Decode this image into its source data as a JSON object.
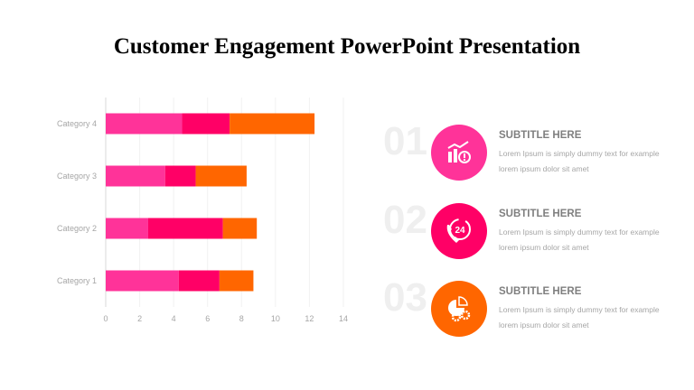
{
  "title": "Customer Engagement PowerPoint Presentation",
  "chart_data": {
    "type": "bar",
    "orientation": "horizontal",
    "stacked": true,
    "categories": [
      "Category 1",
      "Category 2",
      "Category 3",
      "Category 4"
    ],
    "series": [
      {
        "values": [
          4.3,
          2.5,
          3.5,
          4.5
        ],
        "color": "#ff3399"
      },
      {
        "values": [
          2.4,
          4.4,
          1.8,
          2.8
        ],
        "color": "#ff0066"
      },
      {
        "values": [
          2.0,
          2.0,
          3.0,
          5.0
        ],
        "color": "#ff6600"
      }
    ],
    "xlim": [
      0,
      14
    ],
    "xticks": [
      "0",
      "2",
      "4",
      "6",
      "8",
      "10",
      "12",
      "14"
    ],
    "grid": true
  },
  "items": [
    {
      "number": "01",
      "subtitle": "SUBTITLE HERE",
      "text": "Lorem Ipsum is simply dummy text for example lorem ipsum dolor sit amet",
      "color": "#ff3399",
      "icon": "chart-alert-icon"
    },
    {
      "number": "02",
      "subtitle": "SUBTITLE HERE",
      "text": "Lorem Ipsum is simply dummy text for example lorem ipsum dolor sit amet",
      "color": "#ff0066",
      "icon": "phone-24-icon"
    },
    {
      "number": "03",
      "subtitle": "SUBTITLE HERE",
      "text": "Lorem Ipsum is simply dummy text for example lorem ipsum dolor sit amet",
      "color": "#ff6600",
      "icon": "pie-gears-icon"
    }
  ]
}
